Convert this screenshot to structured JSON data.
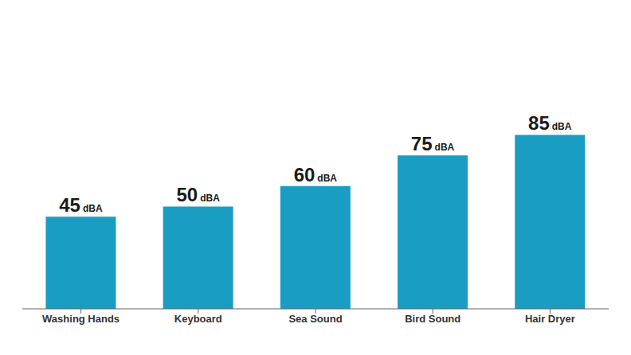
{
  "chart_data": {
    "type": "bar",
    "categories": [
      "Washing Hands",
      "Keyboard",
      "Sea Sound",
      "Bird Sound",
      "Hair Dryer"
    ],
    "values": [
      45,
      50,
      60,
      75,
      85
    ],
    "value_labels": [
      "45 dBA",
      "50 dBA",
      "60 dBA",
      "75 dBA",
      "85 dBA"
    ],
    "data_labels": true,
    "color": "#1A9DC2",
    "ylim": [
      0,
      140
    ],
    "grid": false,
    "tick_labels": "x"
  }
}
